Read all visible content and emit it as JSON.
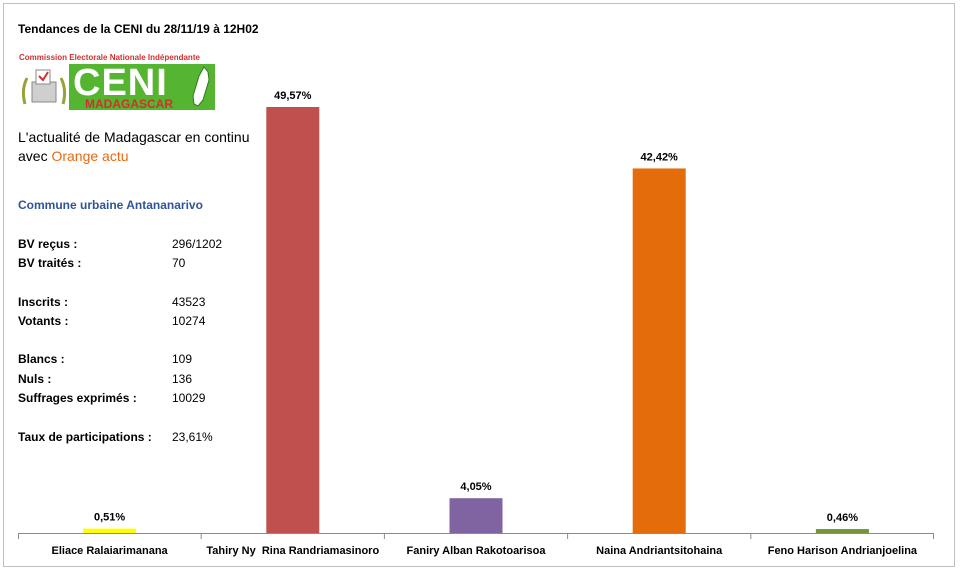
{
  "header": {
    "title": "Tendances de la CENI du 28/11/19 à 12H02"
  },
  "logo": {
    "subtitle": "Commission Electorale Nationale Indépendante",
    "name": "CENI",
    "country": "MADAGASCAR"
  },
  "promo": {
    "line1": "L'actualité de Madagascar en continu",
    "line2_prefix": "avec ",
    "line2_brand": "Orange actu"
  },
  "commune": "Commune urbaine Antananarivo",
  "stats": [
    {
      "label": "BV reçus :",
      "value": "296/1202"
    },
    {
      "label": "BV traités :",
      "value": "70"
    },
    {
      "label": "Inscrits :",
      "value": "43523"
    },
    {
      "label": "Votants :",
      "value": "10274"
    },
    {
      "label": "Blancs :",
      "value": "109"
    },
    {
      "label": "Nuls :",
      "value": "136"
    },
    {
      "label": "Suffrages exprimés :",
      "value": "10029"
    },
    {
      "label": "Taux de participations :",
      "value": "23,61%"
    }
  ],
  "chart_data": {
    "type": "bar",
    "categories": [
      "Eliace Ralaiarimanana",
      "Tahiry Ny  Rina Randriamasinoro",
      "Faniry Alban Rakotoarisoa",
      "Naina Andriantsitohaina",
      "Feno Harison Andrianjoelina"
    ],
    "values": [
      0.51,
      49.57,
      4.05,
      42.42,
      0.46
    ],
    "data_labels": [
      "0,51%",
      "49,57%",
      "4,05%",
      "42,42%",
      "0,46%"
    ],
    "colors": [
      "#ffff00",
      "#c0504d",
      "#8064a2",
      "#e46c0a",
      "#77933c"
    ],
    "ylim": [
      0,
      55
    ],
    "grid": false,
    "legend": "none"
  }
}
